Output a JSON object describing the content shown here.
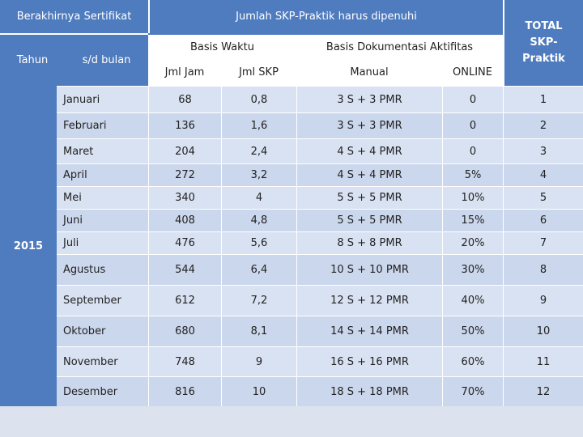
{
  "header": {
    "berakhir": "Berakhirnya Sertifikat",
    "jumlah": "Jumlah SKP-Praktik harus dipenuhi",
    "tahun": "Tahun",
    "sd_bulan": "s/d bulan",
    "basis_waktu": "Basis Waktu",
    "basis_dok": "Basis Dokumentasi Aktifitas",
    "jml_jam": "Jml Jam",
    "jml_skp": "Jml SKP",
    "manual": "Manual",
    "online": "ONLINE",
    "total": "TOTAL SKP-Praktik"
  },
  "year": "2015",
  "rows": [
    {
      "bulan": "Januari",
      "jam": "68",
      "skp": "0,8",
      "manual": "3 S + 3 PMR",
      "online": "0",
      "total": "1"
    },
    {
      "bulan": "Februari",
      "jam": "136",
      "skp": "1,6",
      "manual": "3 S + 3 PMR",
      "online": "0",
      "total": "2"
    },
    {
      "bulan": "Maret",
      "jam": "204",
      "skp": "2,4",
      "manual": "4 S + 4 PMR",
      "online": "0",
      "total": "3"
    },
    {
      "bulan": "April",
      "jam": "272",
      "skp": "3,2",
      "manual": "4 S + 4 PMR",
      "online": "5%",
      "total": "4"
    },
    {
      "bulan": "Mei",
      "jam": "340",
      "skp": "4",
      "manual": "5 S + 5 PMR",
      "online": "10%",
      "total": "5"
    },
    {
      "bulan": "Juni",
      "jam": "408",
      "skp": "4,8",
      "manual": "5 S + 5 PMR",
      "online": "15%",
      "total": "6"
    },
    {
      "bulan": "Juli",
      "jam": "476",
      "skp": "5,6",
      "manual": "8 S + 8 PMR",
      "online": "20%",
      "total": "7"
    },
    {
      "bulan": "Agustus",
      "jam": "544",
      "skp": "6,4",
      "manual": "10 S + 10 PMR",
      "online": "30%",
      "total": "8"
    },
    {
      "bulan": "September",
      "jam": "612",
      "skp": "7,2",
      "manual": "12 S + 12 PMR",
      "online": "40%",
      "total": "9"
    },
    {
      "bulan": "Oktober",
      "jam": "680",
      "skp": "8,1",
      "manual": "14 S + 14 PMR",
      "online": "50%",
      "total": "10"
    },
    {
      "bulan": "November",
      "jam": "748",
      "skp": "9",
      "manual": "16 S + 16 PMR",
      "online": "60%",
      "total": "11"
    },
    {
      "bulan": "Desember",
      "jam": "816",
      "skp": "10",
      "manual": "18 S + 18 PMR",
      "online": "70%",
      "total": "12"
    }
  ]
}
